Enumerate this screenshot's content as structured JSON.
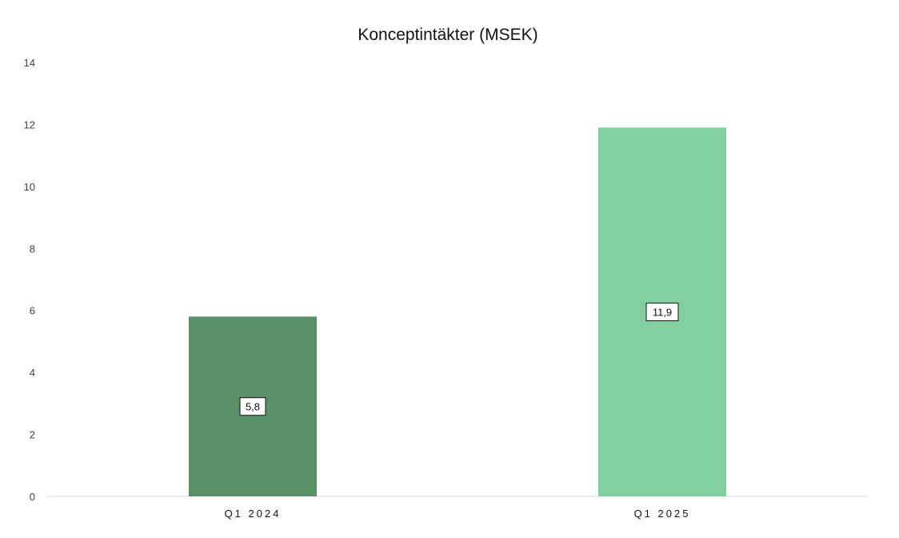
{
  "chart_data": {
    "type": "bar",
    "title": "Konceptintäkter (MSEK)",
    "categories": [
      "Q1 2024",
      "Q1 2025"
    ],
    "values": [
      5.8,
      11.9
    ],
    "data_labels": [
      "5,8",
      "11,9"
    ],
    "bar_colors": [
      "#5a9068",
      "#83cfa1"
    ],
    "xlabel": "",
    "ylabel": "",
    "ylim": [
      0,
      14
    ],
    "yticks": [
      0,
      2,
      4,
      6,
      8,
      10,
      12,
      14
    ],
    "grid": false,
    "legend": "none"
  }
}
